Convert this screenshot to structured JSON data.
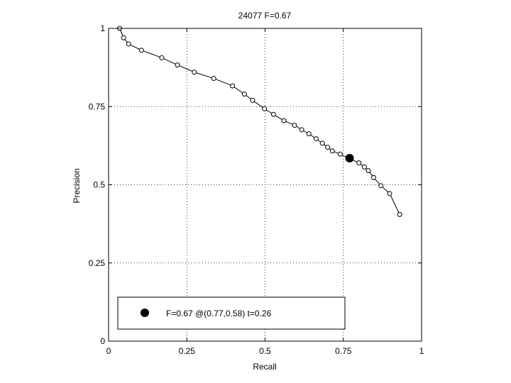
{
  "chart_data": {
    "type": "line",
    "title": "24077 F=0.67",
    "xlabel": "Recall",
    "ylabel": "Precision",
    "xlim": [
      0,
      1
    ],
    "ylim": [
      0,
      1
    ],
    "grid": true,
    "x_ticks": [
      {
        "value": 0,
        "label": "0"
      },
      {
        "value": 0.25,
        "label": "0.25"
      },
      {
        "value": 0.5,
        "label": "0.5"
      },
      {
        "value": 0.75,
        "label": "0.75"
      },
      {
        "value": 1,
        "label": "1"
      }
    ],
    "y_ticks": [
      {
        "value": 0,
        "label": "0"
      },
      {
        "value": 0.25,
        "label": "0.25"
      },
      {
        "value": 0.5,
        "label": "0.5"
      },
      {
        "value": 0.75,
        "label": "0.75"
      },
      {
        "value": 1,
        "label": "1"
      }
    ],
    "series": [
      {
        "marker": "circle-open",
        "color": "#000000",
        "points": [
          [
            0.035,
            1.0
          ],
          [
            0.048,
            0.97
          ],
          [
            0.064,
            0.95
          ],
          [
            0.105,
            0.93
          ],
          [
            0.17,
            0.906
          ],
          [
            0.22,
            0.883
          ],
          [
            0.274,
            0.86
          ],
          [
            0.336,
            0.84
          ],
          [
            0.396,
            0.816
          ],
          [
            0.434,
            0.79
          ],
          [
            0.46,
            0.77
          ],
          [
            0.498,
            0.743
          ],
          [
            0.527,
            0.725
          ],
          [
            0.56,
            0.705
          ],
          [
            0.594,
            0.69
          ],
          [
            0.617,
            0.676
          ],
          [
            0.64,
            0.663
          ],
          [
            0.663,
            0.647
          ],
          [
            0.683,
            0.633
          ],
          [
            0.7,
            0.62
          ],
          [
            0.715,
            0.608
          ],
          [
            0.74,
            0.598
          ],
          [
            0.8,
            0.57
          ],
          [
            0.817,
            0.557
          ],
          [
            0.83,
            0.545
          ],
          [
            0.847,
            0.523
          ],
          [
            0.87,
            0.497
          ],
          [
            0.898,
            0.472
          ],
          [
            0.93,
            0.405
          ]
        ]
      }
    ],
    "highlight": {
      "x": 0.77,
      "y": 0.585,
      "marker": "circle-filled",
      "color": "#000000"
    },
    "legend": {
      "position": "bottom-left",
      "entries": [
        {
          "label": "F=0.67 @(0.77,0.58) t=0.26",
          "marker": "circle-filled"
        }
      ]
    }
  }
}
